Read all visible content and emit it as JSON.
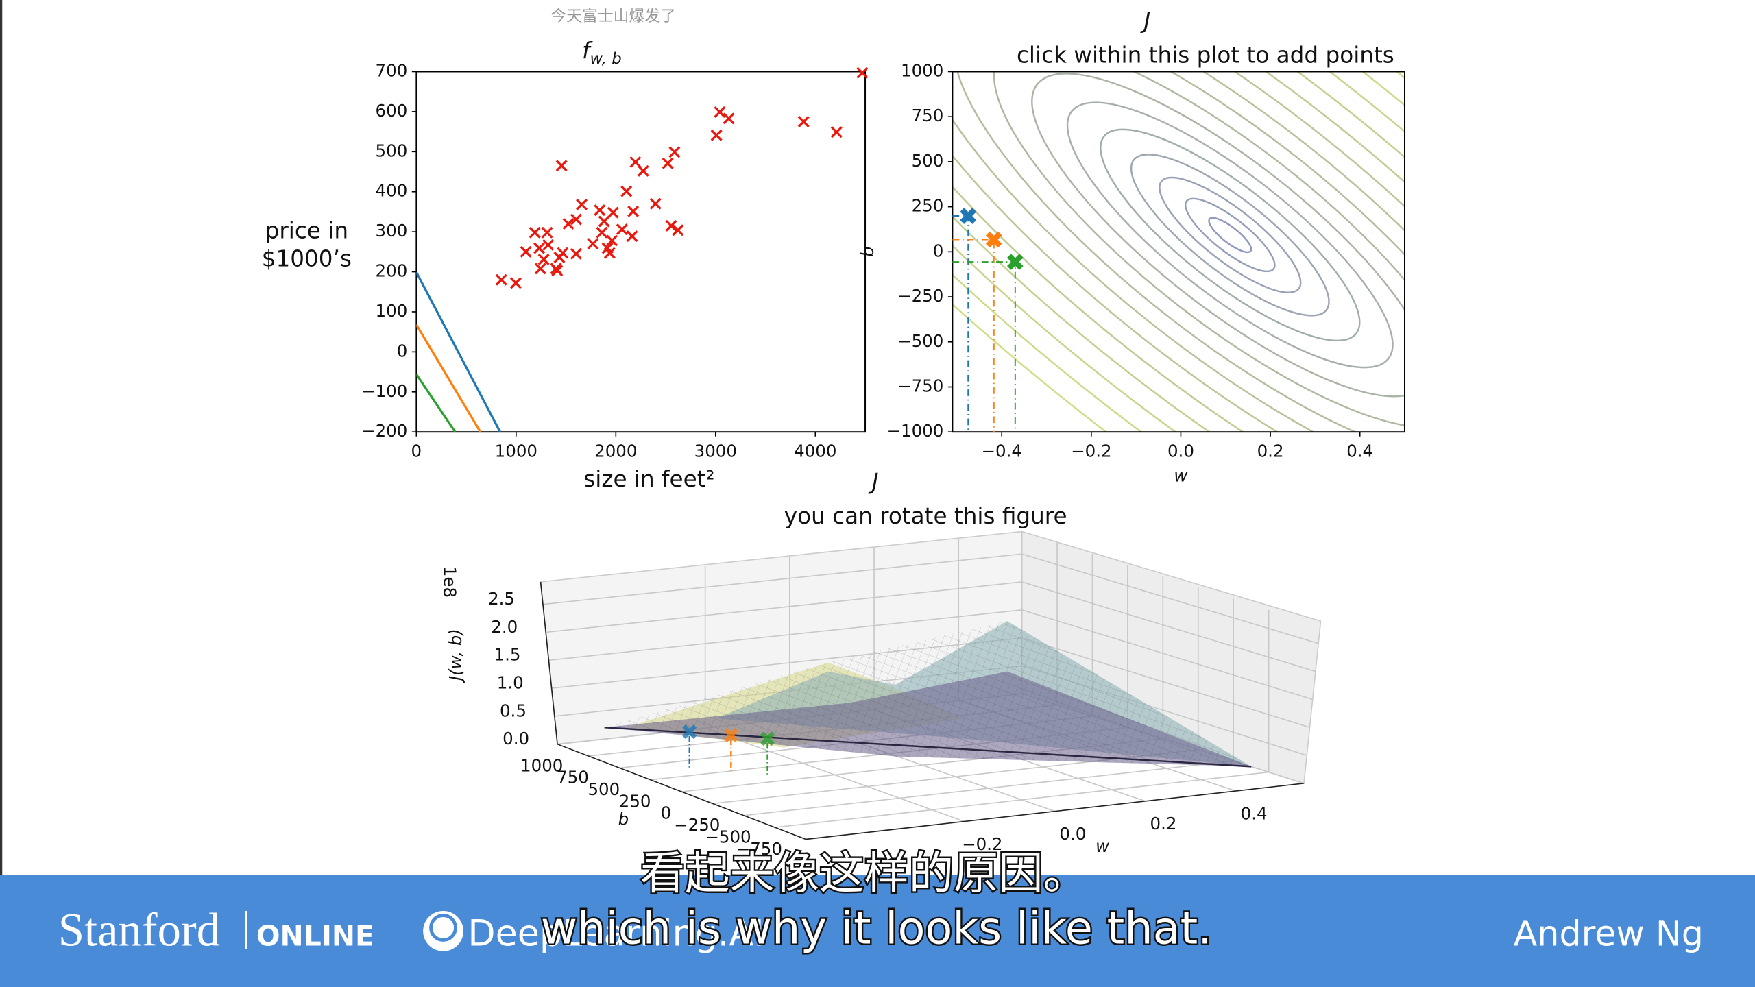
{
  "watermark": "今天富士山爆发了",
  "chart_data": [
    {
      "type": "scatter",
      "title": "f",
      "title_subscript": "w, b",
      "xlabel": "size in feet²",
      "ylabel": [
        "price in",
        "$1000’s"
      ],
      "xlim": [
        0,
        4500
      ],
      "ylim": [
        -200,
        700
      ],
      "xticks": [
        0,
        1000,
        2000,
        3000,
        4000
      ],
      "yticks": [
        {
          "value": -200,
          "label": "−200"
        },
        {
          "value": -100,
          "label": "−100"
        },
        0,
        100,
        200,
        300,
        400,
        500,
        600,
        700
      ],
      "series": [
        {
          "color": "#e8190e",
          "x": [
            852,
            997,
            1098,
            1188,
            1232,
            1244,
            1277,
            1311,
            1322,
            1400,
            1434,
            1456,
            1412,
            1467,
            1524,
            1602,
            1658,
            1602,
            1770,
            1838,
            1860,
            1882,
            1916,
            1938,
            1972,
            1961,
            2062,
            2106,
            2174,
            2196,
            2275,
            2163,
            2398,
            2521,
            2588,
            2555,
            2622,
            3009,
            3042,
            3132,
            3883,
            4213,
            4471
          ],
          "values": [
            180,
            172,
            250,
            298,
            259,
            208,
            231,
            298,
            267,
            208,
            236,
            465,
            203,
            247,
            320,
            245,
            368,
            331,
            270,
            354,
            298,
            326,
            259,
            247,
            348,
            278,
            306,
            401,
            351,
            474,
            452,
            289,
            370,
            471,
            499,
            315,
            304,
            541,
            599,
            583,
            575,
            549,
            697
          ]
        }
      ],
      "lines": [
        {
          "color": "#1f77b4",
          "x": [
            0,
            840
          ],
          "values": [
            199,
            -200
          ]
        },
        {
          "color": "#ff7f0e",
          "x": [
            0,
            642
          ],
          "values": [
            68,
            -200
          ]
        },
        {
          "color": "#2ca02c",
          "x": [
            0,
            389
          ],
          "values": [
            -56,
            -200
          ]
        }
      ]
    },
    {
      "type": "contour",
      "title": "J",
      "subtitle": "click within this plot to add points",
      "xlabel": "w",
      "ylabel": "b",
      "xlim": [
        -0.51,
        0.5
      ],
      "ylim": [
        -1000,
        1000
      ],
      "xticks": [
        {
          "value": -0.4,
          "label": "−0.4"
        },
        {
          "value": -0.2,
          "label": "−0.2"
        },
        {
          "value": 0,
          "label": "0.0"
        },
        0.2,
        0.4
      ],
      "yticks": [
        {
          "value": -1000,
          "label": "−1000"
        },
        {
          "value": -750,
          "label": "−750"
        },
        {
          "value": -500,
          "label": "−500"
        },
        {
          "value": -250,
          "label": "−250"
        },
        0,
        250,
        500,
        750,
        1000
      ],
      "series": [
        {
          "color": "#1f77b4",
          "x": [
            -0.475
          ],
          "values": [
            199
          ]
        },
        {
          "color": "#ff7f0e",
          "x": [
            -0.4175
          ],
          "values": [
            68
          ]
        },
        {
          "color": "#2ca02c",
          "x": [
            -0.37
          ],
          "values": [
            -56
          ]
        }
      ]
    },
    {
      "type": "surface3d",
      "title": "J",
      "subtitle": "you can rotate this figure",
      "xlabel": "w",
      "ylabel": "b",
      "zlabel": "J(w, b)",
      "z_offset_label": "1e8",
      "xlim": [
        -0.55,
        0.55
      ],
      "ylim": [
        -1000,
        1000
      ],
      "zlim": [
        0,
        2.9
      ],
      "xticks": [
        {
          "value": -0.2,
          "label": "−0.2"
        },
        {
          "value": 0,
          "label": "0.0"
        },
        0.2,
        0.4
      ],
      "yticks": [
        1000,
        750,
        500,
        250,
        0,
        {
          "value": -250,
          "label": "−250"
        },
        {
          "value": -500,
          "label": "−500"
        },
        {
          "value": -750,
          "label": "−750"
        }
      ],
      "zticks": [
        {
          "value": 0,
          "label": "0.0"
        },
        0.5,
        {
          "value": 1,
          "label": "1.0"
        },
        1.5,
        {
          "value": 2,
          "label": "2.0"
        },
        2.5
      ]
    }
  ],
  "subtitles": {
    "zh": "看起来像这样的原因。",
    "en": "which is why it looks like that."
  },
  "footer": {
    "brand": "Stanford",
    "brand_suffix": "ONLINE",
    "partner": "DeepLearning.AI",
    "presenter": "Andrew Ng"
  }
}
